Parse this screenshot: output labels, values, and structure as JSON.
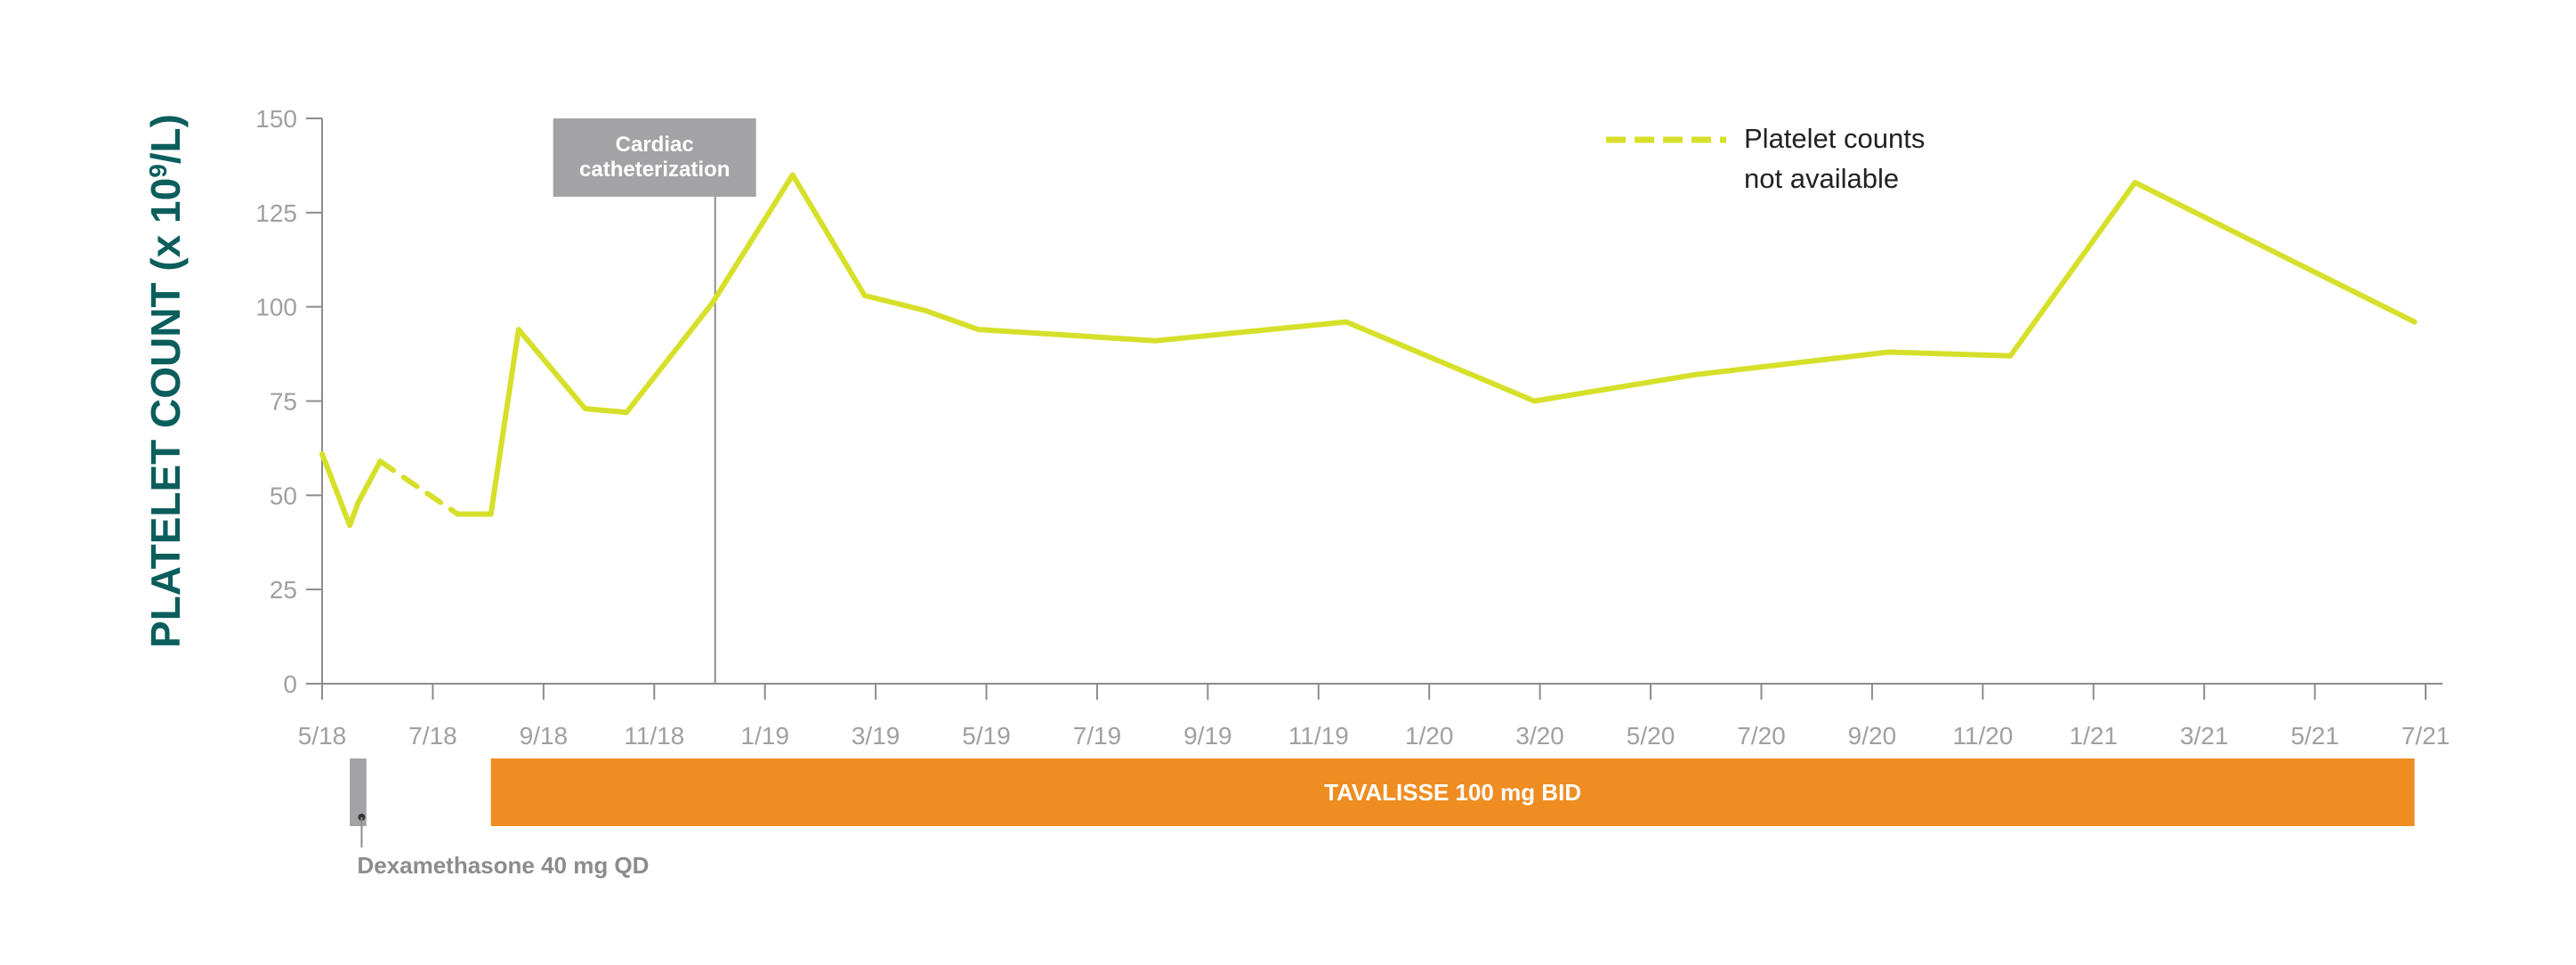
{
  "chart_data": {
    "type": "line",
    "ylabel_main": "PLATELET COUNT (x 10",
    "ylabel_sup": "9",
    "ylabel_end": "/L)",
    "ylim": [
      0,
      150
    ],
    "yticks": [
      0,
      25,
      50,
      75,
      100,
      125,
      150
    ],
    "x_month_range": [
      0,
      38
    ],
    "xtick_labels": [
      "5/18",
      "7/18",
      "9/18",
      "11/18",
      "1/19",
      "3/19",
      "5/19",
      "7/19",
      "9/19",
      "11/19",
      "1/20",
      "3/20",
      "5/20",
      "7/20",
      "9/20",
      "11/20",
      "1/21",
      "3/21",
      "5/21",
      "7/21"
    ],
    "legend": {
      "line1": "Platelet counts",
      "line2": "not available",
      "position": "top-right"
    },
    "colors": {
      "series": "#d6e02a",
      "axis": "#8c8c8c",
      "annotation_box": "#a3a3a5",
      "treatment_bar": "#ef8d22",
      "dex_bar": "#a3a3a5",
      "ylabel": "#0b5e5c"
    },
    "series": [
      {
        "style": "solid",
        "points": [
          [
            0.0,
            61
          ],
          [
            0.5,
            42
          ],
          [
            0.65,
            48
          ],
          [
            1.05,
            59
          ]
        ]
      },
      {
        "style": "dashed",
        "points": [
          [
            1.05,
            59
          ],
          [
            2.45,
            45
          ]
        ]
      },
      {
        "style": "solid",
        "points": [
          [
            2.45,
            45
          ],
          [
            3.05,
            45
          ],
          [
            3.55,
            94
          ],
          [
            4.75,
            73
          ],
          [
            5.5,
            72
          ],
          [
            7.05,
            101
          ],
          [
            8.5,
            135
          ],
          [
            9.8,
            103
          ],
          [
            10.9,
            99
          ],
          [
            11.85,
            94
          ],
          [
            15.05,
            91
          ],
          [
            18.5,
            96
          ],
          [
            21.9,
            75
          ],
          [
            24.8,
            82
          ],
          [
            28.3,
            88
          ],
          [
            30.5,
            87
          ],
          [
            32.75,
            133
          ],
          [
            37.8,
            96
          ]
        ]
      }
    ],
    "annotations": {
      "cardiac": {
        "line1": "Cardiac",
        "line2": "catheterization",
        "x_month": 7.1
      }
    },
    "treatments": [
      {
        "label": "TAVALISSE 100 mg BID",
        "start_month": 3.05,
        "end_month": 37.8
      },
      {
        "label": "Dexamethasone 40 mg QD",
        "start_month": 0.5,
        "end_month": 0.8
      }
    ]
  }
}
